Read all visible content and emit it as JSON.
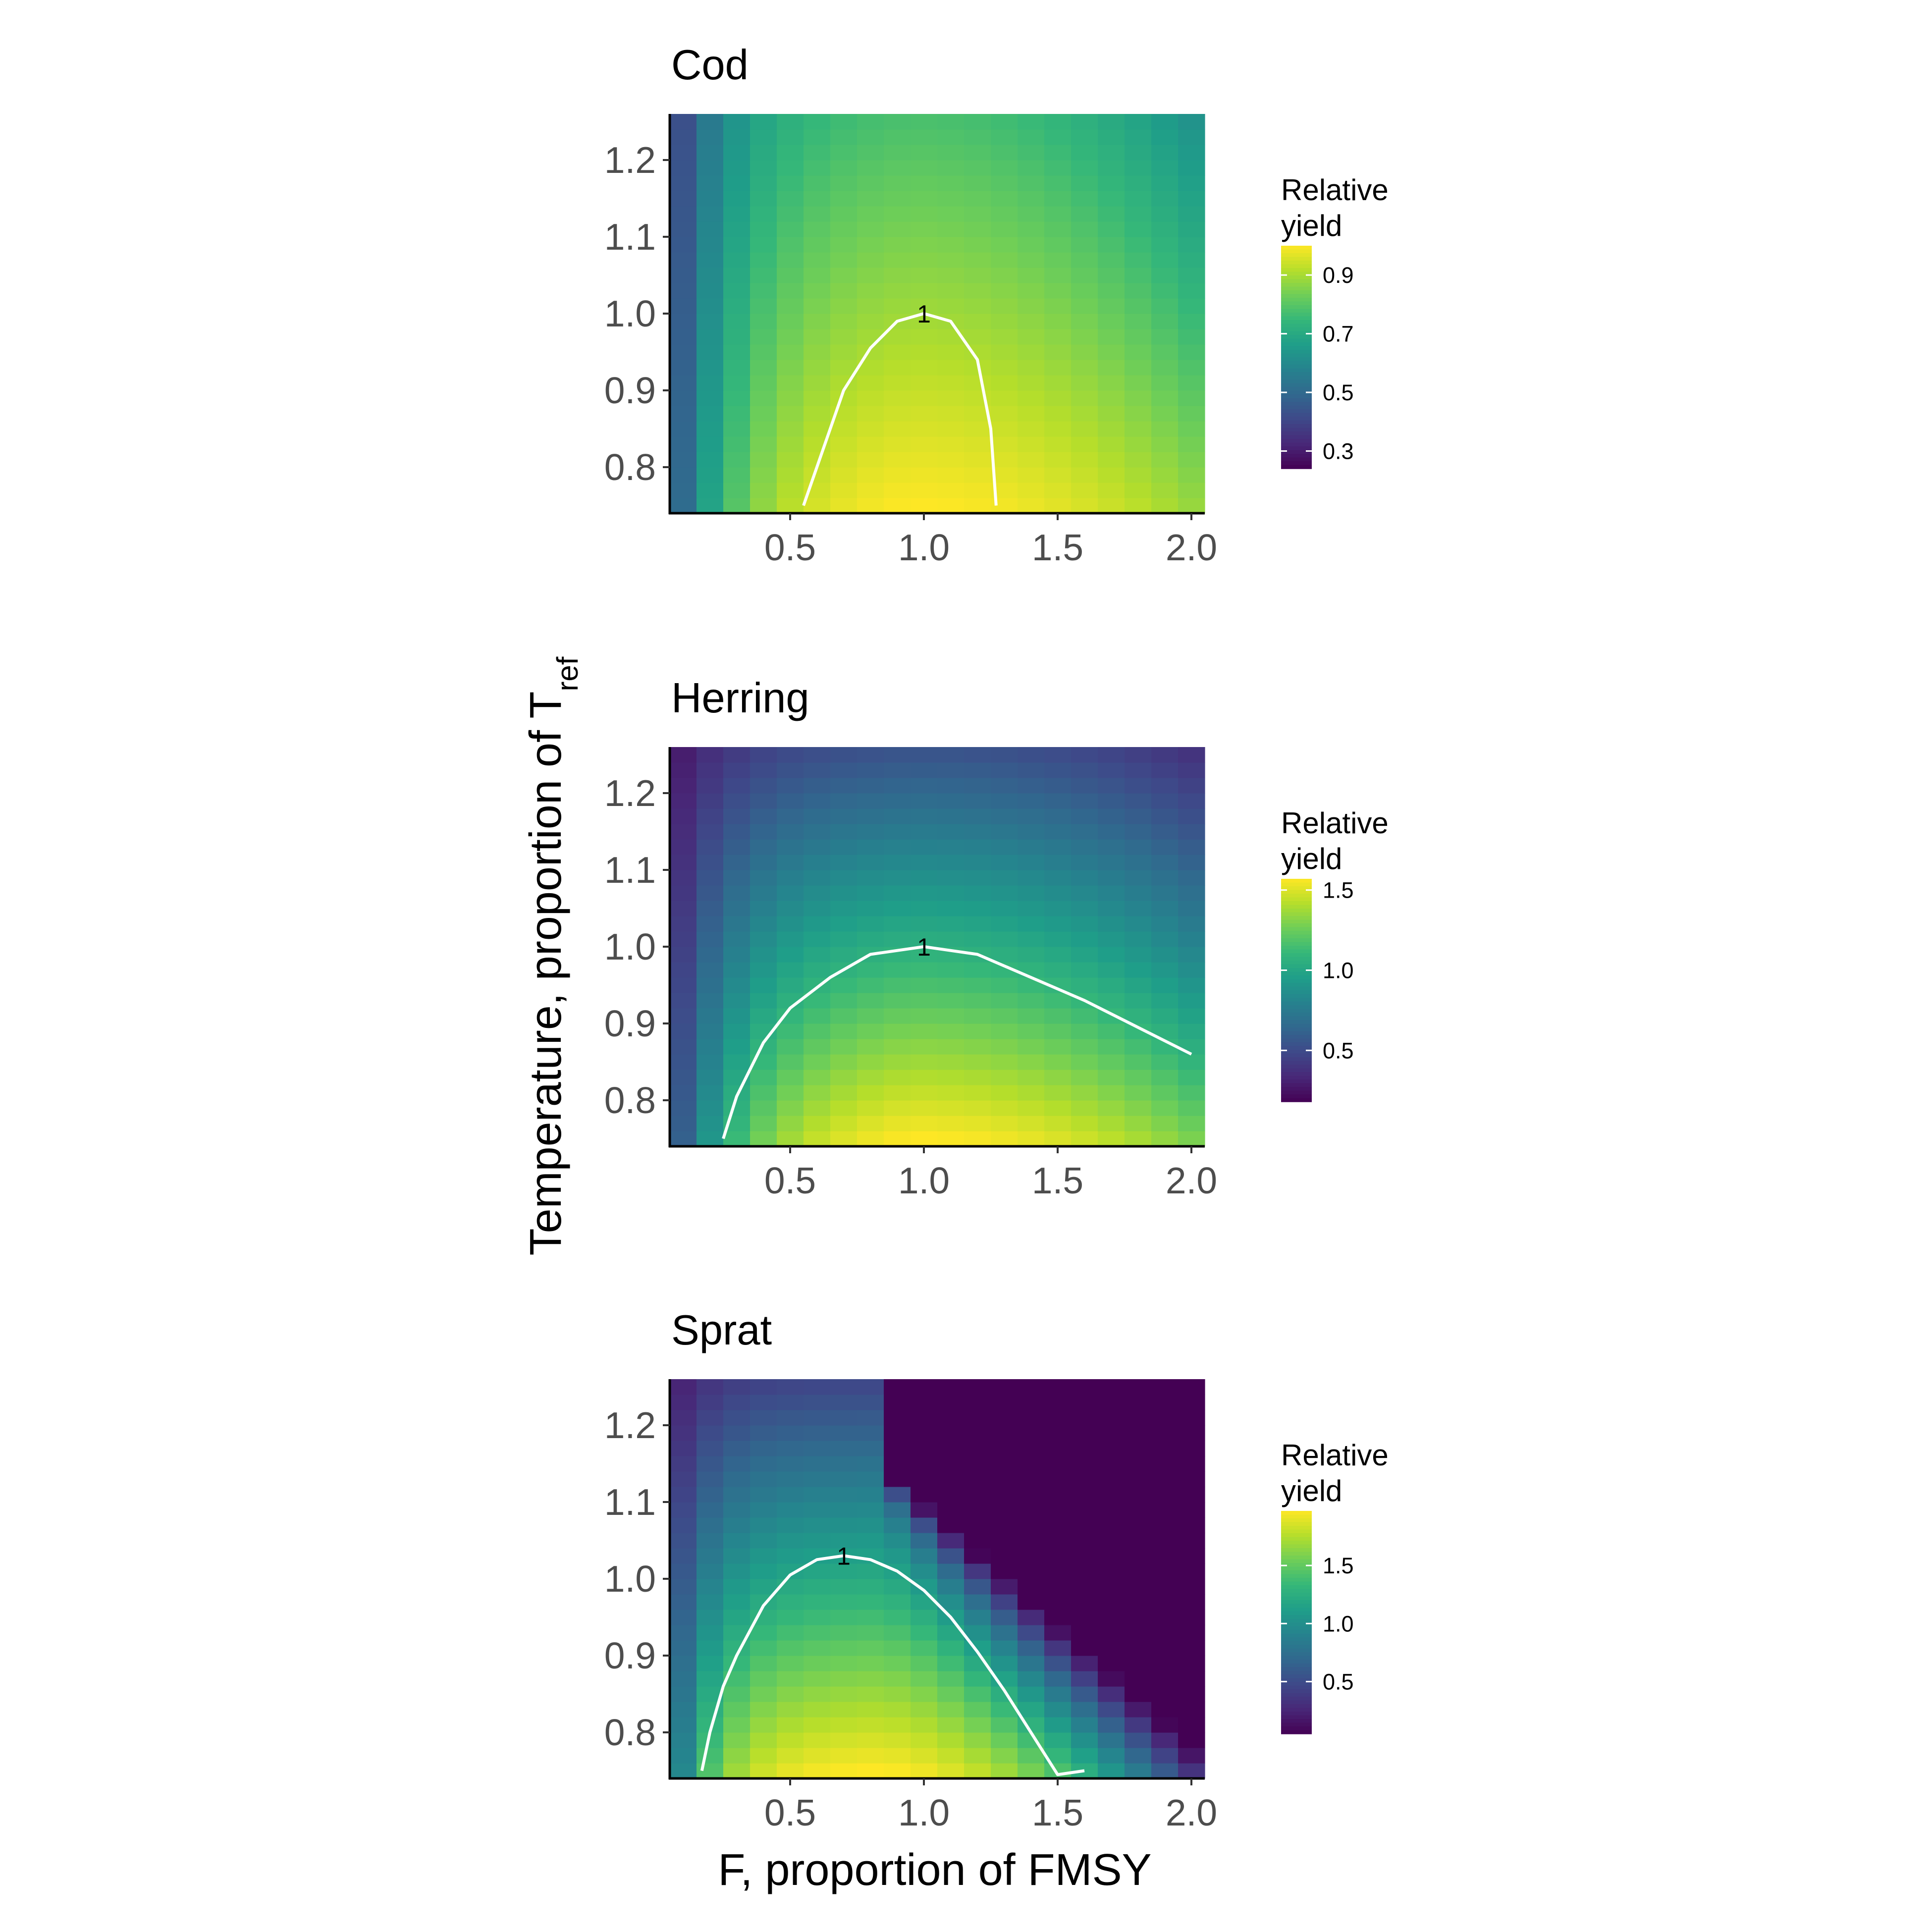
{
  "chart_data": [
    {
      "type": "heatmap",
      "title": "Cod",
      "x_ticks": [
        "0.5",
        "1.0",
        "1.5",
        "2.0"
      ],
      "y_ticks": [
        "0.8",
        "0.9",
        "1.0",
        "1.1",
        "1.2"
      ],
      "xlim": [
        0.05,
        2.05
      ],
      "ylim": [
        0.74,
        1.26
      ],
      "legend": {
        "title_line1": "Relative",
        "title_line2": "yield",
        "range": [
          0.24,
          1.0
        ],
        "breaks": [
          0.3,
          0.5,
          0.7,
          0.9
        ],
        "tick_labels": [
          "0.3",
          "0.5",
          "0.7",
          "0.9"
        ],
        "placement": "right"
      },
      "surface": {
        "x_opt": 0.95,
        "y_low": 0.75,
        "y_high": 1.25,
        "value_low": 1.0,
        "value_high": 0.78,
        "value_at_zero_f": 0.24,
        "left_rise_scale": 0.25,
        "right_decline": 0.12
      },
      "contour": {
        "label": "1",
        "label_at": [
          1.0,
          1.0
        ],
        "points": [
          [
            0.55,
            0.75
          ],
          [
            0.6,
            0.8
          ],
          [
            0.7,
            0.9
          ],
          [
            0.8,
            0.955
          ],
          [
            0.9,
            0.99
          ],
          [
            1.0,
            1.0
          ],
          [
            1.1,
            0.99
          ],
          [
            1.2,
            0.94
          ],
          [
            1.25,
            0.85
          ],
          [
            1.27,
            0.75
          ]
        ]
      }
    },
    {
      "type": "heatmap",
      "title": "Herring",
      "x_ticks": [
        "0.5",
        "1.0",
        "1.5",
        "2.0"
      ],
      "y_ticks": [
        "0.8",
        "0.9",
        "1.0",
        "1.1",
        "1.2"
      ],
      "xlim": [
        0.05,
        2.05
      ],
      "ylim": [
        0.74,
        1.26
      ],
      "legend": {
        "title_line1": "Relative",
        "title_line2": "yield",
        "range": [
          0.18,
          1.57
        ],
        "breaks": [
          0.5,
          1.0,
          1.5
        ],
        "tick_labels": [
          "0.5",
          "1.0",
          "1.5"
        ],
        "placement": "right"
      },
      "surface": {
        "x_opt": 0.95,
        "y_low": 0.75,
        "y_high": 1.25,
        "value_low": 1.57,
        "value_high": 0.55,
        "value_at_zero_f": 0.18,
        "left_rise_scale": 0.3,
        "right_decline": 0.18
      },
      "contour": {
        "label": "1",
        "label_at": [
          1.0,
          1.0
        ],
        "points": [
          [
            0.25,
            0.75
          ],
          [
            0.3,
            0.805
          ],
          [
            0.4,
            0.875
          ],
          [
            0.5,
            0.92
          ],
          [
            0.65,
            0.96
          ],
          [
            0.8,
            0.99
          ],
          [
            1.0,
            1.0
          ],
          [
            1.2,
            0.99
          ],
          [
            1.4,
            0.96
          ],
          [
            1.6,
            0.93
          ],
          [
            1.8,
            0.895
          ],
          [
            2.0,
            0.86
          ]
        ]
      }
    },
    {
      "type": "heatmap",
      "title": "Sprat",
      "x_ticks": [
        "0.5",
        "1.0",
        "1.5",
        "2.0"
      ],
      "y_ticks": [
        "0.8",
        "0.9",
        "1.0",
        "1.1",
        "1.2"
      ],
      "xlim": [
        0.05,
        2.05
      ],
      "ylim": [
        0.74,
        1.26
      ],
      "legend": {
        "title_line1": "Relative",
        "title_line2": "yield",
        "range": [
          0.05,
          1.97
        ],
        "breaks": [
          0.5,
          1.0,
          1.5
        ],
        "tick_labels": [
          "0.5",
          "1.0",
          "1.5"
        ],
        "placement": "right"
      },
      "surface": {
        "x_opt": 0.8,
        "y_low": 0.75,
        "y_high": 1.25,
        "value_low": 1.97,
        "value_high": 0.48,
        "value_at_zero_f": 0.05,
        "left_rise_scale": 0.2,
        "right_collapse": true
      },
      "contour": {
        "label": "1",
        "label_at": [
          0.7,
          1.03
        ],
        "points": [
          [
            0.17,
            0.75
          ],
          [
            0.2,
            0.8
          ],
          [
            0.25,
            0.86
          ],
          [
            0.3,
            0.9
          ],
          [
            0.4,
            0.965
          ],
          [
            0.5,
            1.005
          ],
          [
            0.6,
            1.025
          ],
          [
            0.7,
            1.03
          ],
          [
            0.8,
            1.025
          ],
          [
            0.9,
            1.01
          ],
          [
            1.0,
            0.985
          ],
          [
            1.1,
            0.95
          ],
          [
            1.2,
            0.905
          ],
          [
            1.3,
            0.855
          ],
          [
            1.4,
            0.8
          ],
          [
            1.5,
            0.745
          ],
          [
            1.6,
            0.75
          ]
        ]
      }
    }
  ],
  "axes": {
    "y_title": "Temperature, proportion of T",
    "y_title_subscript": "ref",
    "x_title": "F, proportion of FMSY"
  }
}
